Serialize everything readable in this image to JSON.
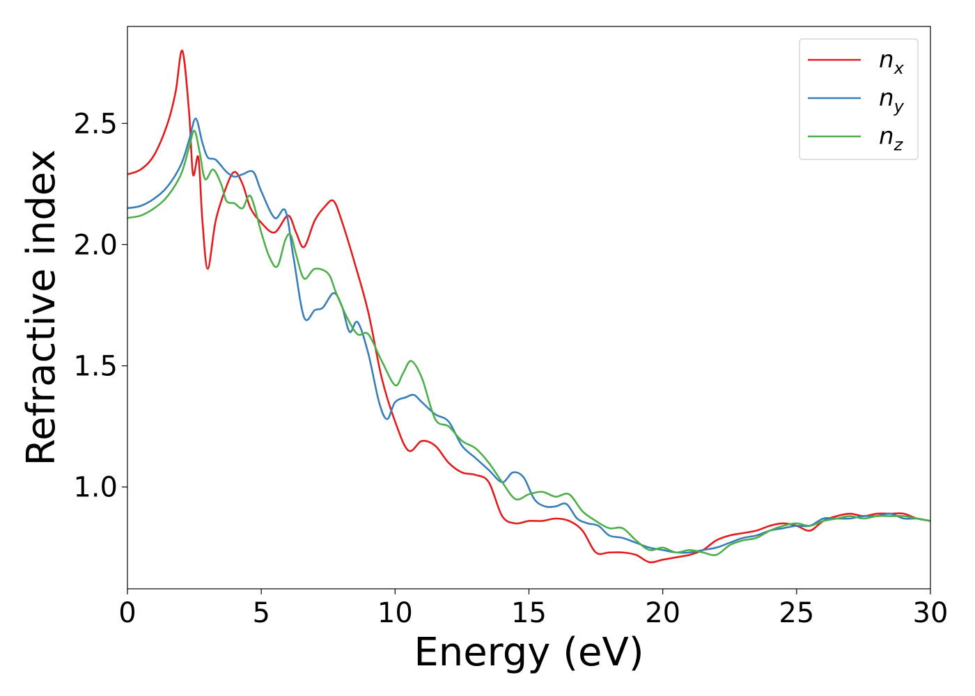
{
  "chart_data": {
    "type": "line",
    "xlabel": "Energy (eV)",
    "ylabel": "Refractive index",
    "xlim": [
      0,
      30
    ],
    "ylim": [
      0.58,
      2.9
    ],
    "xticks": [
      0,
      5,
      10,
      15,
      20,
      25,
      30
    ],
    "xtick_labels": [
      "0",
      "5",
      "10",
      "15",
      "20",
      "25",
      "30"
    ],
    "yticks": [
      1.0,
      1.5,
      2.0,
      2.5
    ],
    "ytick_labels": [
      "1.0",
      "1.5",
      "2.0",
      "2.5"
    ],
    "grid": false,
    "legend_position": "top-right",
    "series": [
      {
        "name": "n",
        "subscript": "x",
        "color": "#e41a1c",
        "x": [
          0,
          0.5,
          1.0,
          1.5,
          1.8,
          2.05,
          2.3,
          2.45,
          2.65,
          2.8,
          3.0,
          3.3,
          3.7,
          4.0,
          4.3,
          4.6,
          5.0,
          5.5,
          6.0,
          6.3,
          6.6,
          7.0,
          7.4,
          7.7,
          8.0,
          8.5,
          9.0,
          9.5,
          10.0,
          10.5,
          11.0,
          11.5,
          12.0,
          12.5,
          13.0,
          13.5,
          14.0,
          14.5,
          15.0,
          15.5,
          16.0,
          16.5,
          17.0,
          17.5,
          18.0,
          18.5,
          19.0,
          19.5,
          20.0,
          20.5,
          21.0,
          21.5,
          22.0,
          22.5,
          23.0,
          23.5,
          24.0,
          24.5,
          25.0,
          25.5,
          26.0,
          26.5,
          27.0,
          27.5,
          28.0,
          28.5,
          29.0,
          29.5,
          30.0
        ],
        "y": [
          2.29,
          2.31,
          2.37,
          2.5,
          2.63,
          2.8,
          2.55,
          2.29,
          2.36,
          2.1,
          1.9,
          2.1,
          2.24,
          2.3,
          2.25,
          2.15,
          2.09,
          2.05,
          2.12,
          2.05,
          1.99,
          2.1,
          2.16,
          2.18,
          2.1,
          1.92,
          1.72,
          1.45,
          1.27,
          1.15,
          1.19,
          1.17,
          1.1,
          1.06,
          1.05,
          1.02,
          0.88,
          0.85,
          0.86,
          0.86,
          0.87,
          0.86,
          0.82,
          0.73,
          0.73,
          0.73,
          0.72,
          0.69,
          0.7,
          0.71,
          0.72,
          0.74,
          0.78,
          0.8,
          0.81,
          0.82,
          0.84,
          0.85,
          0.84,
          0.82,
          0.86,
          0.88,
          0.89,
          0.88,
          0.89,
          0.89,
          0.89,
          0.87,
          0.86
        ]
      },
      {
        "name": "n",
        "subscript": "y",
        "color": "#377eb8",
        "x": [
          0,
          0.5,
          1.0,
          1.5,
          2.0,
          2.3,
          2.55,
          2.8,
          3.0,
          3.3,
          3.7,
          4.0,
          4.3,
          4.7,
          5.0,
          5.5,
          5.9,
          6.2,
          6.6,
          7.0,
          7.3,
          7.7,
          8.0,
          8.3,
          8.6,
          9.0,
          9.4,
          9.7,
          10.0,
          10.4,
          10.7,
          11.0,
          11.5,
          12.0,
          12.5,
          13.0,
          13.5,
          14.0,
          14.4,
          14.8,
          15.2,
          15.6,
          16.0,
          16.4,
          16.8,
          17.2,
          17.6,
          18.0,
          18.5,
          19.0,
          19.5,
          20.0,
          20.5,
          21.0,
          21.5,
          22.0,
          22.5,
          23.0,
          23.5,
          24.0,
          24.5,
          25.0,
          25.5,
          26.0,
          26.5,
          27.0,
          27.5,
          28.0,
          28.5,
          29.0,
          29.5,
          30.0
        ],
        "y": [
          2.15,
          2.16,
          2.19,
          2.24,
          2.33,
          2.43,
          2.52,
          2.42,
          2.36,
          2.35,
          2.3,
          2.28,
          2.29,
          2.3,
          2.22,
          2.11,
          2.14,
          1.95,
          1.7,
          1.73,
          1.74,
          1.8,
          1.75,
          1.64,
          1.68,
          1.55,
          1.35,
          1.28,
          1.35,
          1.37,
          1.38,
          1.35,
          1.3,
          1.27,
          1.17,
          1.12,
          1.07,
          1.02,
          1.06,
          1.04,
          0.95,
          0.92,
          0.92,
          0.93,
          0.87,
          0.85,
          0.84,
          0.8,
          0.79,
          0.77,
          0.75,
          0.74,
          0.73,
          0.73,
          0.74,
          0.75,
          0.77,
          0.79,
          0.8,
          0.82,
          0.83,
          0.84,
          0.84,
          0.87,
          0.87,
          0.87,
          0.88,
          0.88,
          0.89,
          0.87,
          0.87,
          0.86
        ]
      },
      {
        "name": "n",
        "subscript": "z",
        "color": "#4daf4a",
        "x": [
          0,
          0.5,
          1.0,
          1.5,
          2.0,
          2.3,
          2.5,
          2.7,
          2.9,
          3.2,
          3.5,
          3.7,
          4.0,
          4.3,
          4.6,
          5.0,
          5.3,
          5.6,
          5.9,
          6.1,
          6.3,
          6.6,
          7.0,
          7.5,
          7.8,
          8.2,
          8.6,
          9.0,
          9.5,
          10.0,
          10.3,
          10.6,
          11.0,
          11.5,
          12.0,
          12.5,
          13.0,
          13.5,
          14.0,
          14.5,
          15.0,
          15.5,
          16.0,
          16.5,
          17.0,
          17.5,
          18.0,
          18.5,
          19.0,
          19.5,
          20.0,
          20.5,
          21.0,
          21.5,
          22.0,
          22.5,
          23.0,
          23.5,
          24.0,
          24.5,
          25.0,
          25.5,
          26.0,
          26.5,
          27.0,
          27.5,
          28.0,
          28.5,
          29.0,
          29.5,
          30.0
        ],
        "y": [
          2.11,
          2.12,
          2.15,
          2.2,
          2.29,
          2.4,
          2.47,
          2.38,
          2.27,
          2.31,
          2.25,
          2.18,
          2.17,
          2.15,
          2.2,
          2.05,
          1.95,
          1.91,
          2.02,
          2.04,
          1.96,
          1.86,
          1.9,
          1.88,
          1.8,
          1.7,
          1.63,
          1.63,
          1.52,
          1.42,
          1.47,
          1.52,
          1.45,
          1.28,
          1.25,
          1.19,
          1.16,
          1.1,
          1.02,
          0.95,
          0.97,
          0.98,
          0.96,
          0.97,
          0.9,
          0.86,
          0.83,
          0.83,
          0.78,
          0.74,
          0.75,
          0.73,
          0.74,
          0.73,
          0.72,
          0.76,
          0.78,
          0.79,
          0.82,
          0.84,
          0.85,
          0.84,
          0.86,
          0.87,
          0.88,
          0.87,
          0.88,
          0.88,
          0.88,
          0.87,
          0.86
        ]
      }
    ]
  }
}
